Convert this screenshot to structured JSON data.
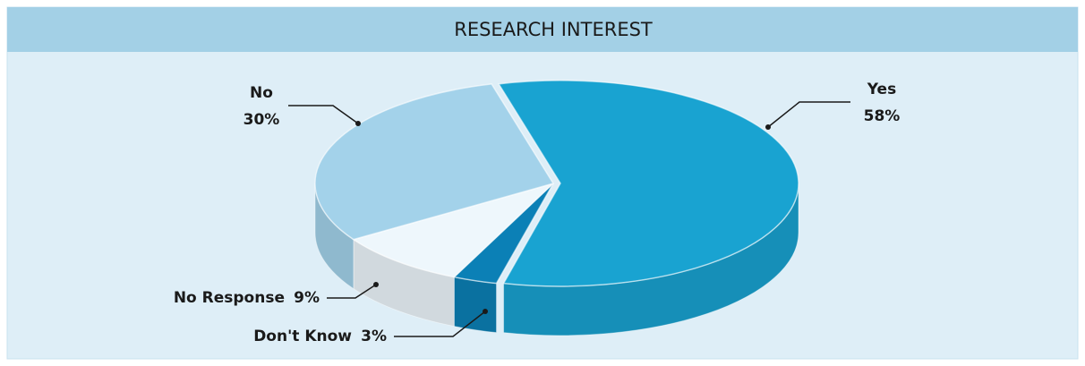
{
  "chart_data": {
    "type": "pie3d",
    "title": "RESEARCH INTEREST",
    "categories": [
      "Yes",
      "Don't Know",
      "No Response",
      "No"
    ],
    "values": [
      58,
      3,
      9,
      30
    ],
    "value_labels": [
      "58%",
      "3%",
      "9%",
      "30%"
    ],
    "colors": [
      "#19a3d1",
      "#0b80b6",
      "#eef7fc",
      "#a3d2ea"
    ]
  }
}
